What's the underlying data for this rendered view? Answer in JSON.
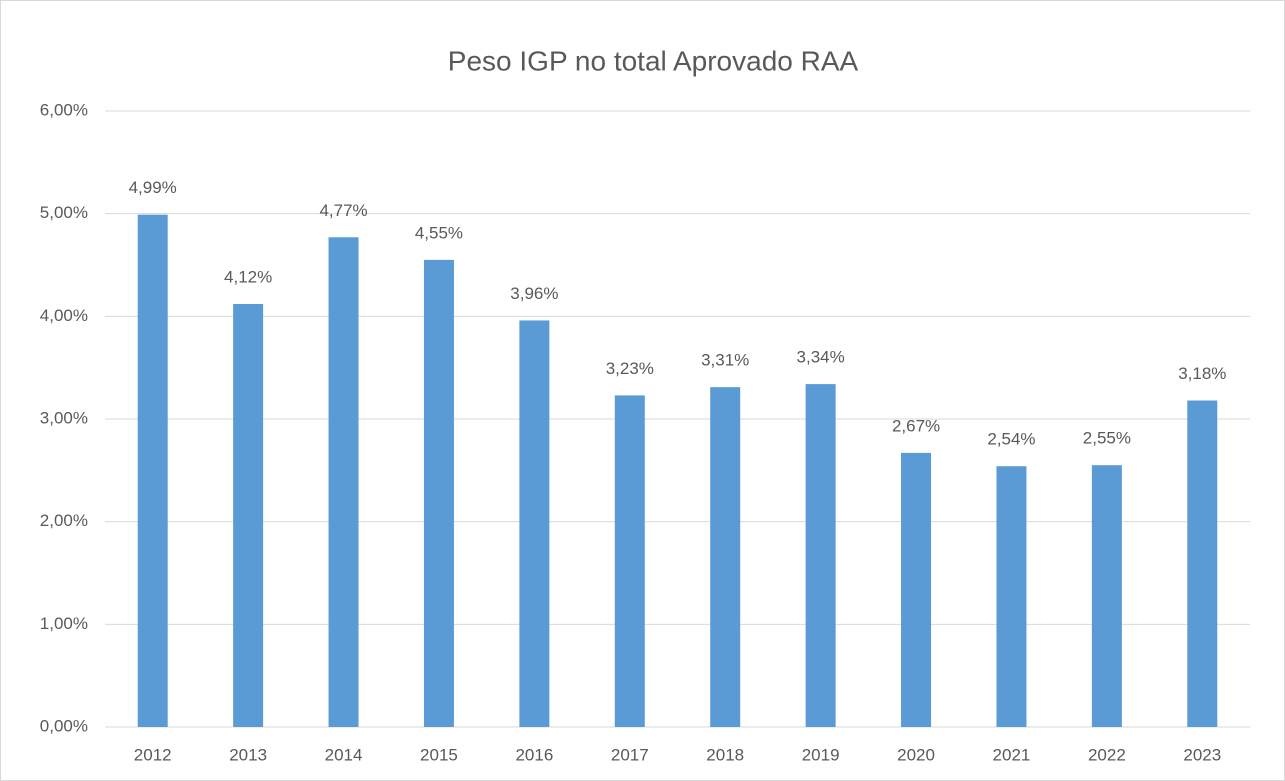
{
  "chart_data": {
    "type": "bar",
    "title": "Peso IGP no total Aprovado RAA",
    "categories": [
      "2012",
      "2013",
      "2014",
      "2015",
      "2016",
      "2017",
      "2018",
      "2019",
      "2020",
      "2021",
      "2022",
      "2023"
    ],
    "values": [
      4.99,
      4.12,
      4.77,
      4.55,
      3.96,
      3.23,
      3.31,
      3.34,
      2.67,
      2.54,
      2.55,
      3.18
    ],
    "value_labels": [
      "4,99%",
      "4,12%",
      "4,77%",
      "4,55%",
      "3,96%",
      "3,23%",
      "3,31%",
      "3,34%",
      "2,67%",
      "2,54%",
      "2,55%",
      "3,18%"
    ],
    "color": "#5b9bd5",
    "ylim": [
      0,
      6
    ],
    "yticks": [
      {
        "value": 0,
        "label": "0,00%"
      },
      {
        "value": 1,
        "label": "1,00%"
      },
      {
        "value": 2,
        "label": "2,00%"
      },
      {
        "value": 3,
        "label": "3,00%"
      },
      {
        "value": 4,
        "label": "4,00%"
      },
      {
        "value": 5,
        "label": "5,00%"
      },
      {
        "value": 6,
        "label": "6,00%"
      }
    ],
    "grid": true
  }
}
